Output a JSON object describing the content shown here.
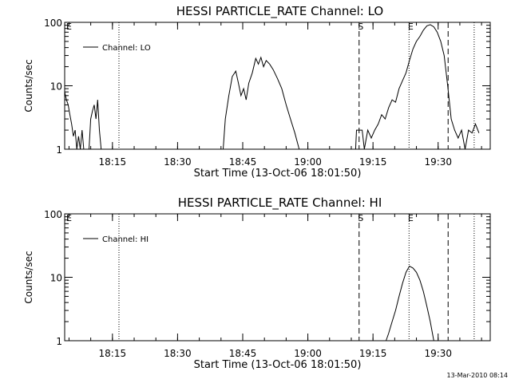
{
  "footer_timestamp": "13-Mar-2010 08:14",
  "chart_data": [
    {
      "type": "line",
      "title": "HESSI PARTICLE_RATE Channel: LO",
      "xlabel": "Start Time (13-Oct-06 18:01:50)",
      "ylabel": "Counts/sec",
      "y_scale": "log",
      "ylim": [
        1,
        100
      ],
      "xlim": [
        "18:04",
        "19:42"
      ],
      "x_ticks": [
        "18:15",
        "18:30",
        "18:45",
        "19:00",
        "19:15",
        "19:30"
      ],
      "y_ticks": [
        "1",
        "10",
        "100"
      ],
      "legend": {
        "position": "top-left",
        "entries": [
          "Channel: LO"
        ]
      },
      "markers": [
        {
          "time": "18:16.5",
          "style": "dotted",
          "label": ""
        },
        {
          "time": "19:11.8",
          "style": "dashed",
          "label": "S"
        },
        {
          "time": "19:23.3",
          "style": "dotted",
          "label": "E"
        },
        {
          "time": "19:32.3",
          "style": "dashed",
          "label": ""
        },
        {
          "time": "19:38.3",
          "style": "dotted",
          "label": ""
        }
      ],
      "edge_label": "E",
      "series": [
        {
          "segments": [
            [
              [
                "18:04.0",
                8
              ],
              [
                "18:04.4",
                6
              ],
              [
                "18:04.8",
                5
              ],
              [
                "18:05.2",
                3.5
              ],
              [
                "18:05.6",
                2.5
              ],
              [
                "18:06.0",
                1.6
              ],
              [
                "18:06.4",
                2
              ],
              [
                "18:06.8",
                1
              ],
              [
                "18:07.2",
                1.6
              ],
              [
                "18:07.6",
                1
              ],
              [
                "18:08.0",
                2
              ],
              [
                "18:08.4",
                1
              ],
              [
                "18:08.8",
                1
              ],
              [
                "18:09.6",
                1
              ],
              [
                "18:10.0",
                3
              ],
              [
                "18:10.4",
                4
              ],
              [
                "18:10.8",
                5
              ],
              [
                "18:11.2",
                3
              ],
              [
                "18:11.6",
                6
              ],
              [
                "18:12.0",
                2
              ],
              [
                "18:12.4",
                1
              ]
            ],
            [
              [
                "18:40.5",
                1
              ],
              [
                "18:41.0",
                3
              ],
              [
                "18:41.8",
                7
              ],
              [
                "18:42.6",
                14
              ],
              [
                "18:43.4",
                17
              ],
              [
                "18:44.0",
                11
              ],
              [
                "18:44.6",
                7
              ],
              [
                "18:45.2",
                9
              ],
              [
                "18:45.8",
                6
              ],
              [
                "18:46.4",
                11
              ],
              [
                "18:47.2",
                16
              ],
              [
                "18:48.0",
                27
              ],
              [
                "18:48.6",
                22
              ],
              [
                "18:49.2",
                28
              ],
              [
                "18:49.8",
                20
              ],
              [
                "18:50.4",
                25
              ],
              [
                "18:51.2",
                22
              ],
              [
                "18:52.0",
                18
              ],
              [
                "18:53.0",
                13
              ],
              [
                "18:54.0",
                9
              ],
              [
                "18:55.0",
                5
              ],
              [
                "18:56.0",
                3
              ],
              [
                "18:57.0",
                1.8
              ],
              [
                "18:58.0",
                1
              ]
            ],
            [
              [
                "19:11.0",
                1
              ],
              [
                "19:11.2",
                2
              ],
              [
                "19:11.8",
                2
              ],
              [
                "19:12.5",
                2
              ],
              [
                "19:13.0",
                1
              ],
              [
                "19:13.8",
                2
              ],
              [
                "19:14.6",
                1.5
              ],
              [
                "19:15.4",
                2
              ],
              [
                "19:16.2",
                2.5
              ],
              [
                "19:17.0",
                3.5
              ],
              [
                "19:17.8",
                3
              ],
              [
                "19:18.6",
                4.5
              ],
              [
                "19:19.4",
                6
              ],
              [
                "19:20.2",
                5.5
              ],
              [
                "19:21.0",
                9
              ],
              [
                "19:21.8",
                12
              ],
              [
                "19:22.6",
                16
              ],
              [
                "19:23.4",
                25
              ],
              [
                "19:24.2",
                38
              ],
              [
                "19:25.0",
                50
              ],
              [
                "19:25.8",
                60
              ],
              [
                "19:26.6",
                75
              ],
              [
                "19:27.4",
                88
              ],
              [
                "19:28.2",
                92
              ],
              [
                "19:29.0",
                85
              ],
              [
                "19:29.8",
                70
              ],
              [
                "19:30.6",
                50
              ],
              [
                "19:31.4",
                30
              ],
              [
                "19:32.2",
                10
              ],
              [
                "19:33.0",
                3
              ],
              [
                "19:33.8",
                2
              ],
              [
                "19:34.6",
                1.5
              ],
              [
                "19:35.4",
                2
              ],
              [
                "19:36.2",
                1
              ],
              [
                "19:37.0",
                2
              ],
              [
                "19:37.8",
                1.8
              ],
              [
                "19:38.6",
                2.5
              ],
              [
                "19:39.4",
                1.8
              ]
            ]
          ]
        }
      ]
    },
    {
      "type": "line",
      "title": "HESSI PARTICLE_RATE Channel: HI",
      "xlabel": "Start Time (13-Oct-06 18:01:50)",
      "ylabel": "Counts/sec",
      "y_scale": "log",
      "ylim": [
        1,
        100
      ],
      "xlim": [
        "18:04",
        "19:42"
      ],
      "x_ticks": [
        "18:15",
        "18:30",
        "18:45",
        "19:00",
        "19:15",
        "19:30"
      ],
      "y_ticks": [
        "1",
        "10",
        "100"
      ],
      "legend": {
        "position": "top-left",
        "entries": [
          "Channel: HI"
        ]
      },
      "markers": [
        {
          "time": "18:16.5",
          "style": "dotted",
          "label": ""
        },
        {
          "time": "19:11.8",
          "style": "dashed",
          "label": "S"
        },
        {
          "time": "19:23.3",
          "style": "dotted",
          "label": "E"
        },
        {
          "time": "19:32.3",
          "style": "dashed",
          "label": ""
        },
        {
          "time": "19:38.3",
          "style": "dotted",
          "label": ""
        }
      ],
      "edge_label": "E",
      "series": [
        {
          "segments": [
            [
              [
                "19:18.0",
                1
              ],
              [
                "19:18.6",
                1.3
              ],
              [
                "19:19.4",
                2
              ],
              [
                "19:20.2",
                3
              ],
              [
                "19:21.0",
                5
              ],
              [
                "19:21.8",
                8
              ],
              [
                "19:22.6",
                12
              ],
              [
                "19:23.4",
                15
              ],
              [
                "19:24.2",
                14
              ],
              [
                "19:25.0",
                12
              ],
              [
                "19:25.8",
                9
              ],
              [
                "19:26.6",
                6
              ],
              [
                "19:27.4",
                3.5
              ],
              [
                "19:28.2",
                2
              ],
              [
                "19:29.0",
                1
              ]
            ]
          ]
        }
      ]
    }
  ]
}
